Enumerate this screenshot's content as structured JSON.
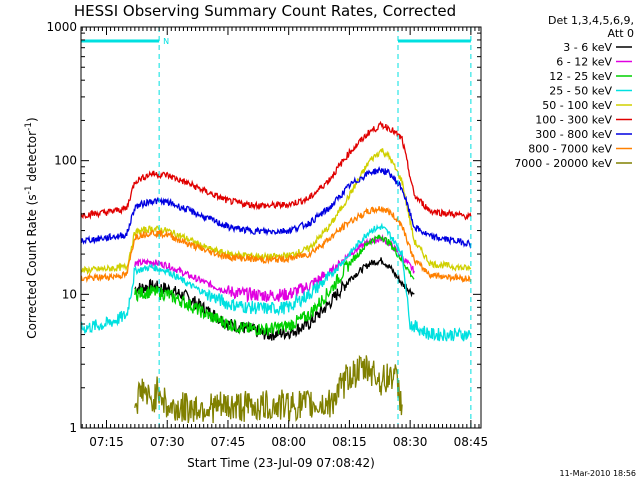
{
  "chart_data": {
    "type": "line",
    "title": "HESSI Observing Summary Count Rates, Corrected",
    "xlabel": "Start Time (23-Jul-09 07:08:42)",
    "ylabel_main": "Corrected Count Rate (s",
    "ylabel_sup1": "-1",
    "ylabel_mid": " detector",
    "ylabel_sup2": "-1",
    "ylabel_end": ")",
    "yscale": "log",
    "ylim": [
      1,
      1000
    ],
    "xlim": [
      "07:08:42",
      "08:47:30"
    ],
    "x_ticks": [
      "07:15",
      "07:30",
      "07:45",
      "08:00",
      "08:15",
      "08:30",
      "08:45"
    ],
    "y_ticks": [
      "1",
      "10",
      "100",
      "1000"
    ],
    "legend_header": [
      "Det 1,3,4,5,6,9,",
      "Att 0"
    ],
    "legend_position": "top-right",
    "footer_timestamp": "11-Mar-2010 18:56",
    "night_marker": "N",
    "night_intervals": [
      [
        "07:08:42",
        "07:28:00"
      ],
      [
        "08:27:00",
        "08:45:00"
      ]
    ],
    "marker_times": [
      "07:28:00",
      "08:27:00",
      "08:45:00"
    ],
    "series": [
      {
        "name": "3 - 6 keV",
        "color": "#000000",
        "x": [
          "07:22",
          "07:26",
          "07:30",
          "07:35",
          "07:40",
          "07:45",
          "07:50",
          "07:55",
          "08:00",
          "08:05",
          "08:10",
          "08:15",
          "08:20",
          "08:23",
          "08:25",
          "08:28",
          "08:31"
        ],
        "values": [
          11,
          11.5,
          11,
          9.5,
          7.5,
          6,
          5.5,
          5,
          5.2,
          6,
          8.5,
          13,
          17,
          18,
          16,
          12,
          10
        ]
      },
      {
        "name": "6 - 12 keV",
        "color": "#e000e0",
        "x": [
          "07:22",
          "07:26",
          "07:30",
          "07:35",
          "07:40",
          "07:45",
          "07:50",
          "07:55",
          "08:00",
          "08:05",
          "08:10",
          "08:15",
          "08:20",
          "08:23",
          "08:25",
          "08:28",
          "08:31"
        ],
        "values": [
          17,
          17.5,
          16.5,
          14,
          12,
          10.5,
          10,
          9.8,
          10,
          11.5,
          14.5,
          20,
          25,
          26,
          24,
          19,
          15
        ]
      },
      {
        "name": "12 - 25 keV",
        "color": "#00d000",
        "x": [
          "07:22",
          "07:26",
          "07:30",
          "07:35",
          "07:40",
          "07:45",
          "07:50",
          "07:55",
          "08:00",
          "08:05",
          "08:10",
          "08:15",
          "08:20",
          "08:23",
          "08:25",
          "08:28",
          "08:31"
        ],
        "values": [
          10,
          10.5,
          10,
          8.5,
          7,
          6,
          5.5,
          5.5,
          5.8,
          7,
          10.5,
          17,
          25,
          27,
          24,
          18,
          13
        ]
      },
      {
        "name": "25 - 50 keV",
        "color": "#00e0e0",
        "x": [
          "07:08",
          "07:15",
          "07:20",
          "07:22",
          "07:26",
          "07:30",
          "07:35",
          "07:40",
          "07:45",
          "07:50",
          "07:55",
          "08:00",
          "08:05",
          "08:10",
          "08:15",
          "08:20",
          "08:23",
          "08:25",
          "08:28",
          "08:30",
          "08:35",
          "08:45"
        ],
        "values": [
          5.5,
          6,
          7,
          15,
          16,
          15,
          12,
          10,
          8.5,
          8,
          7.8,
          8,
          10,
          13.5,
          20,
          30,
          32,
          28,
          20,
          6,
          5,
          5
        ]
      },
      {
        "name": "50 - 100 keV",
        "color": "#d0d000",
        "x": [
          "07:08",
          "07:15",
          "07:20",
          "07:22",
          "07:26",
          "07:30",
          "07:35",
          "07:40",
          "07:45",
          "07:50",
          "07:55",
          "08:00",
          "08:05",
          "08:10",
          "08:15",
          "08:20",
          "08:23",
          "08:25",
          "08:28",
          "08:31",
          "08:35",
          "08:45"
        ],
        "values": [
          15,
          15.5,
          16,
          29,
          31,
          30,
          26,
          22,
          20,
          19.5,
          19,
          19.5,
          22,
          32,
          55,
          100,
          120,
          105,
          70,
          25,
          17,
          15.5
        ]
      },
      {
        "name": "100 - 300 keV",
        "color": "#e00000",
        "x": [
          "07:08",
          "07:15",
          "07:20",
          "07:22",
          "07:26",
          "07:30",
          "07:35",
          "07:40",
          "07:45",
          "07:50",
          "07:55",
          "08:00",
          "08:05",
          "08:10",
          "08:15",
          "08:20",
          "08:23",
          "08:25",
          "08:28",
          "08:31",
          "08:35",
          "08:45"
        ],
        "values": [
          39,
          41,
          44,
          70,
          80,
          78,
          68,
          58,
          50,
          47,
          46,
          47,
          52,
          72,
          115,
          165,
          185,
          175,
          145,
          55,
          42,
          38
        ]
      },
      {
        "name": "300 - 800 keV",
        "color": "#0000e0",
        "x": [
          "07:08",
          "07:15",
          "07:20",
          "07:22",
          "07:26",
          "07:30",
          "07:35",
          "07:40",
          "07:45",
          "07:50",
          "07:55",
          "08:00",
          "08:05",
          "08:10",
          "08:15",
          "08:20",
          "08:23",
          "08:25",
          "08:28",
          "08:31",
          "08:35",
          "08:45"
        ],
        "values": [
          25,
          26.5,
          28,
          45,
          50,
          49,
          43,
          37,
          32,
          30,
          29.5,
          30,
          34,
          44,
          65,
          82,
          85,
          80,
          62,
          32,
          27,
          24
        ]
      },
      {
        "name": "800 - 7000 keV",
        "color": "#ff8000",
        "x": [
          "07:08",
          "07:15",
          "07:20",
          "07:22",
          "07:26",
          "07:30",
          "07:35",
          "07:40",
          "07:45",
          "07:50",
          "07:55",
          "08:00",
          "08:05",
          "08:10",
          "08:15",
          "08:20",
          "08:23",
          "08:25",
          "08:28",
          "08:31",
          "08:35",
          "08:45"
        ],
        "values": [
          13,
          13.5,
          14,
          27,
          29,
          28,
          24,
          21,
          19,
          18.5,
          18,
          18.5,
          20,
          26,
          35,
          42,
          44,
          41,
          33,
          18,
          14,
          13
        ]
      },
      {
        "name": "7000 - 20000 keV",
        "color": "#808000",
        "x": [
          "07:22",
          "07:24",
          "07:26",
          "07:28",
          "07:30",
          "08:10",
          "08:13",
          "08:15",
          "08:20",
          "08:23",
          "08:26",
          "08:28"
        ],
        "values": [
          1.5,
          2,
          1.5,
          2,
          1.4,
          1.5,
          2,
          2.5,
          2.8,
          2.2,
          2.6,
          1.5
        ]
      }
    ]
  }
}
